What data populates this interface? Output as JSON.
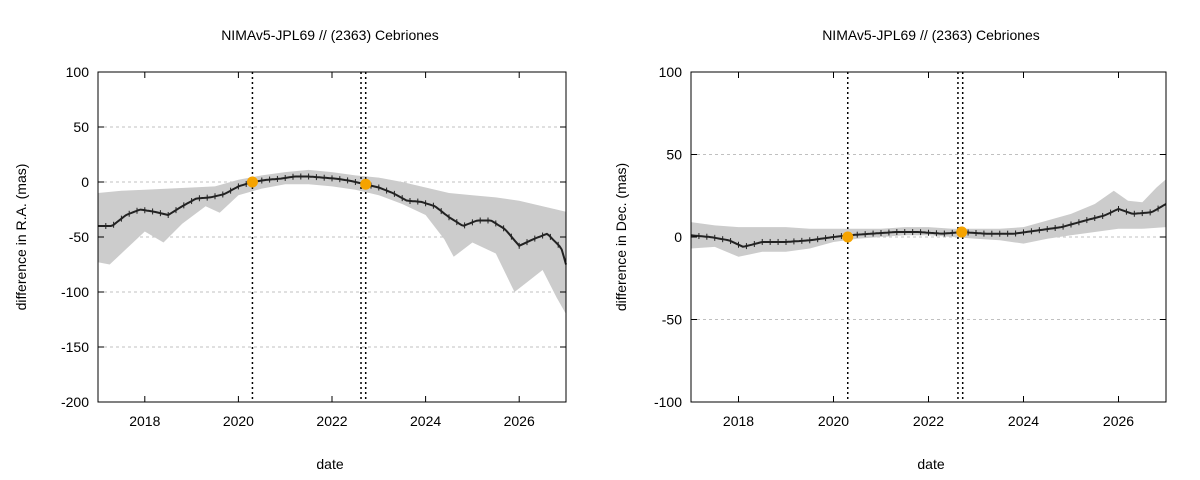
{
  "colors": {
    "band": "#cccccc",
    "line": "#222222",
    "marker": "#f5a300",
    "grid": "#c0c0c0",
    "frame": "#000000"
  },
  "chart_data": [
    {
      "type": "line",
      "title": "NIMAv5-JPL69 // (2363) Cebriones",
      "xlabel": "date",
      "ylabel": "difference in R.A. (mas)",
      "xlim": [
        2017.0,
        2027.0
      ],
      "ylim": [
        -200,
        100
      ],
      "x_ticks": [
        2018,
        2020,
        2022,
        2024,
        2026
      ],
      "x_tick_labels": [
        "2018",
        "2020",
        "2022",
        "2024",
        "2026"
      ],
      "y_ticks": [
        -200,
        -150,
        -100,
        -50,
        0,
        50,
        100
      ],
      "y_tick_labels": [
        "-200",
        "-150",
        "-100",
        "-50",
        "0",
        "50",
        "100"
      ],
      "grid": true,
      "vertical_lines": [
        {
          "x": 2020.3,
          "style": "dotted"
        },
        {
          "x": 2022.62,
          "style": "dotted"
        },
        {
          "x": 2022.72,
          "style": "dotted"
        }
      ],
      "series": [
        {
          "kind": "line",
          "x": [
            2017.0,
            2017.3,
            2017.6,
            2017.9,
            2018.2,
            2018.5,
            2018.8,
            2019.1,
            2019.4,
            2019.7,
            2020.0,
            2020.3,
            2020.6,
            2020.9,
            2021.2,
            2021.5,
            2021.8,
            2022.1,
            2022.4,
            2022.7,
            2023.0,
            2023.3,
            2023.6,
            2023.9,
            2024.2,
            2024.5,
            2024.8,
            2025.1,
            2025.4,
            2025.7,
            2026.0,
            2026.3,
            2026.6,
            2026.9,
            2027.0
          ],
          "y": [
            -40,
            -40,
            -30,
            -25,
            -27,
            -30,
            -22,
            -15,
            -14,
            -11,
            -4,
            0,
            2,
            3,
            5,
            5,
            4,
            3,
            1,
            -2,
            -5,
            -10,
            -17,
            -18,
            -22,
            -32,
            -40,
            -35,
            -35,
            -43,
            -58,
            -52,
            -47,
            -60,
            -75
          ]
        },
        {
          "kind": "band_upper",
          "x": [
            2017.0,
            2017.5,
            2018.0,
            2018.5,
            2019.0,
            2019.5,
            2020.0,
            2020.5,
            2021.0,
            2021.5,
            2022.0,
            2022.5,
            2023.0,
            2023.5,
            2024.0,
            2024.5,
            2025.0,
            2025.5,
            2026.0,
            2026.5,
            2027.0
          ],
          "y": [
            -10,
            -8,
            -7,
            -6,
            -5,
            -4,
            2,
            6,
            9,
            11,
            9,
            6,
            4,
            0,
            -5,
            -10,
            -12,
            -14,
            -17,
            -22,
            -27
          ]
        },
        {
          "kind": "band_lower",
          "x": [
            2017.0,
            2017.25,
            2017.5,
            2018.0,
            2018.4,
            2018.8,
            2019.3,
            2019.6,
            2020.0,
            2020.5,
            2021.0,
            2021.5,
            2022.0,
            2022.5,
            2023.0,
            2023.5,
            2024.0,
            2024.4,
            2024.6,
            2025.0,
            2025.5,
            2025.9,
            2026.2,
            2026.5,
            2026.8,
            2027.0
          ],
          "y": [
            -73,
            -75,
            -65,
            -45,
            -55,
            -38,
            -22,
            -28,
            -12,
            -6,
            -2,
            -2,
            -4,
            -7,
            -12,
            -20,
            -30,
            -52,
            -68,
            -55,
            -65,
            -100,
            -90,
            -80,
            -105,
            -120
          ]
        },
        {
          "kind": "markers",
          "x": [
            2020.3,
            2022.72
          ],
          "y": [
            0,
            -2
          ]
        }
      ]
    },
    {
      "type": "line",
      "title": "NIMAv5-JPL69 // (2363) Cebriones",
      "xlabel": "date",
      "ylabel": "difference in Dec. (mas)",
      "xlim": [
        2017.0,
        2027.0
      ],
      "ylim": [
        -100,
        100
      ],
      "x_ticks": [
        2018,
        2020,
        2022,
        2024,
        2026
      ],
      "x_tick_labels": [
        "2018",
        "2020",
        "2022",
        "2024",
        "2026"
      ],
      "y_ticks": [
        -100,
        -50,
        0,
        50,
        100
      ],
      "y_tick_labels": [
        "-100",
        "-50",
        "0",
        "50",
        "100"
      ],
      "grid": true,
      "vertical_lines": [
        {
          "x": 2020.3,
          "style": "dotted"
        },
        {
          "x": 2022.62,
          "style": "dotted"
        },
        {
          "x": 2022.72,
          "style": "dotted"
        }
      ],
      "series": [
        {
          "kind": "line",
          "x": [
            2017.0,
            2017.4,
            2017.8,
            2018.1,
            2018.5,
            2019.0,
            2019.5,
            2020.0,
            2020.3,
            2020.8,
            2021.3,
            2021.8,
            2022.3,
            2022.7,
            2023.2,
            2023.8,
            2024.3,
            2024.8,
            2025.3,
            2025.7,
            2026.0,
            2026.3,
            2026.7,
            2027.0
          ],
          "y": [
            1,
            0,
            -2,
            -6,
            -3,
            -3,
            -2,
            0,
            1,
            2,
            3,
            3,
            2,
            3,
            2,
            2,
            4,
            6,
            10,
            13,
            17,
            14,
            15,
            20
          ]
        },
        {
          "kind": "band_upper",
          "x": [
            2017.0,
            2017.5,
            2018.0,
            2018.5,
            2019.0,
            2019.5,
            2020.0,
            2020.5,
            2021.0,
            2021.5,
            2022.0,
            2022.5,
            2023.0,
            2023.5,
            2024.0,
            2024.5,
            2025.0,
            2025.5,
            2025.9,
            2026.2,
            2026.5,
            2026.8,
            2027.0
          ],
          "y": [
            9,
            7,
            6,
            6,
            6,
            5,
            5,
            5,
            5,
            6,
            6,
            5,
            5,
            5,
            6,
            10,
            14,
            20,
            28,
            22,
            21,
            30,
            35
          ]
        },
        {
          "kind": "band_lower",
          "x": [
            2017.0,
            2017.5,
            2018.0,
            2018.5,
            2019.0,
            2019.5,
            2020.0,
            2020.5,
            2021.0,
            2021.5,
            2022.0,
            2022.5,
            2023.0,
            2023.5,
            2024.0,
            2024.5,
            2025.0,
            2025.5,
            2026.0,
            2026.5,
            2027.0
          ],
          "y": [
            -7,
            -6,
            -12,
            -9,
            -9,
            -7,
            -3,
            -1,
            0,
            1,
            1,
            0,
            -1,
            -2,
            -4,
            -1,
            1,
            3,
            5,
            5,
            6
          ]
        },
        {
          "kind": "markers",
          "x": [
            2020.3,
            2022.7
          ],
          "y": [
            0,
            3
          ]
        }
      ]
    }
  ]
}
